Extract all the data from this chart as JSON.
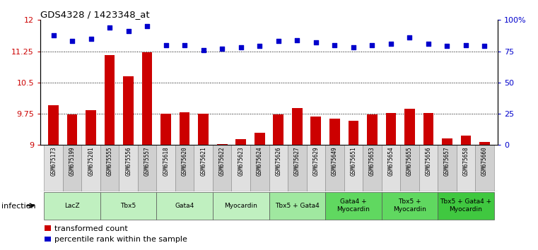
{
  "title": "GDS4328 / 1423348_at",
  "samples": [
    "GSM675173",
    "GSM675199",
    "GSM675201",
    "GSM675555",
    "GSM675556",
    "GSM675557",
    "GSM675618",
    "GSM675620",
    "GSM675621",
    "GSM675622",
    "GSM675623",
    "GSM675624",
    "GSM675626",
    "GSM675627",
    "GSM675629",
    "GSM675649",
    "GSM675651",
    "GSM675653",
    "GSM675654",
    "GSM675655",
    "GSM675656",
    "GSM675657",
    "GSM675658",
    "GSM675660"
  ],
  "bar_values": [
    9.95,
    9.73,
    9.83,
    11.15,
    10.65,
    11.23,
    9.75,
    9.78,
    9.75,
    9.02,
    9.14,
    9.29,
    9.74,
    9.89,
    9.68,
    9.63,
    9.58,
    9.73,
    9.77,
    9.87,
    9.77,
    9.15,
    9.22,
    9.08
  ],
  "dot_values": [
    88,
    83,
    85,
    94,
    91,
    95,
    80,
    80,
    76,
    77,
    78,
    79,
    83,
    84,
    82,
    80,
    78,
    80,
    81,
    86,
    81,
    79,
    80,
    79
  ],
  "groups": [
    {
      "label": "LacZ",
      "start": 0,
      "end": 3,
      "color": "#c0f0c0"
    },
    {
      "label": "Tbx5",
      "start": 3,
      "end": 6,
      "color": "#c0f0c0"
    },
    {
      "label": "Gata4",
      "start": 6,
      "end": 9,
      "color": "#c0f0c0"
    },
    {
      "label": "Myocardin",
      "start": 9,
      "end": 12,
      "color": "#c0f0c0"
    },
    {
      "label": "Tbx5 + Gata4",
      "start": 12,
      "end": 15,
      "color": "#a0e8a0"
    },
    {
      "label": "Gata4 +\nMyocardin",
      "start": 15,
      "end": 18,
      "color": "#60d860"
    },
    {
      "label": "Tbx5 +\nMyocardin",
      "start": 18,
      "end": 21,
      "color": "#60d860"
    },
    {
      "label": "Tbx5 + Gata4 +\nMyocardin",
      "start": 21,
      "end": 24,
      "color": "#40c840"
    }
  ],
  "ylim_left": [
    9.0,
    12.0
  ],
  "ylim_right": [
    0,
    100
  ],
  "yticks_left": [
    9.0,
    9.75,
    10.5,
    11.25,
    12.0
  ],
  "ytick_labels_left": [
    "9",
    "9.75",
    "10.5",
    "11.25",
    "12"
  ],
  "yticks_right": [
    0,
    25,
    50,
    75,
    100
  ],
  "ytick_labels_right": [
    "0",
    "25",
    "50",
    "75",
    "100%"
  ],
  "bar_color": "#cc0000",
  "dot_color": "#0000cc",
  "bar_bottom": 9.0,
  "infection_label": "infection",
  "legend_bar_label": "transformed count",
  "legend_dot_label": "percentile rank within the sample",
  "tick_bg_colors": [
    "#e0e0e0",
    "#d0d0d0",
    "#e0e0e0",
    "#c8c8c8",
    "#d8d8d8",
    "#e0e0e0",
    "#d8d8d8",
    "#d0d0d0",
    "#d8d8d8",
    "#d8d8d8",
    "#d0d0d0",
    "#d8d8d8",
    "#d8d8d8",
    "#d0d0d0",
    "#d8d8d8",
    "#d8d8d8",
    "#d0d0d0",
    "#d8d8d8",
    "#d8d8d8",
    "#d0d0d0",
    "#d8d8d8",
    "#d8d8d8",
    "#d0d0d0",
    "#d8d8d8"
  ]
}
